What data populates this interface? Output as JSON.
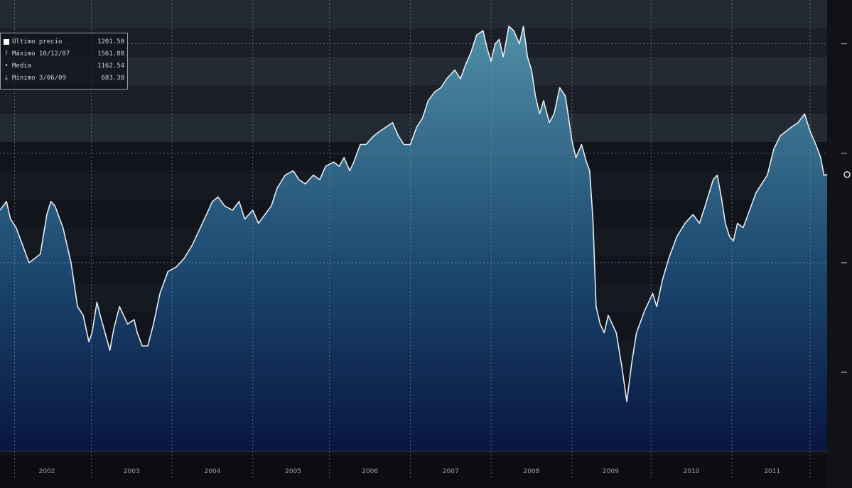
{
  "legend": {
    "rows": [
      {
        "marker": "square",
        "label": "Último precio",
        "value": "1201.50"
      },
      {
        "marker": "high",
        "label": "Máximo 10/12/07",
        "value": "1561.80"
      },
      {
        "marker": "mean",
        "label": "Media",
        "value": "1162.54"
      },
      {
        "marker": "low",
        "label": "Mínimo 3/06/09",
        "value": "683.38"
      }
    ]
  },
  "colors": {
    "background_band_dark": "#15181f",
    "background_band_light": "#242a33",
    "area_top": "#4f8fa5",
    "area_bottom": "#08163f",
    "line": "#e6ecf2",
    "grid": "#8d939b"
  },
  "chart_data": {
    "type": "area",
    "title": "",
    "xlabel": "",
    "ylabel": "",
    "x_tick_labels": [
      "2002",
      "2003",
      "2004",
      "2005",
      "2006",
      "2007",
      "2008",
      "2009",
      "2010",
      "2011"
    ],
    "ylim": [
      570,
      1600
    ],
    "grid": true,
    "legend_position": "top-left",
    "series": [
      {
        "values_by_year": [
          [
            2001.42,
            1120
          ],
          [
            2001.5,
            1140
          ],
          [
            2001.55,
            1100
          ],
          [
            2001.62,
            1080
          ],
          [
            2001.7,
            1040
          ],
          [
            2001.78,
            1000
          ],
          [
            2001.85,
            1010
          ],
          [
            2001.92,
            1020
          ],
          [
            2002.0,
            1110
          ],
          [
            2002.05,
            1140
          ],
          [
            2002.1,
            1130
          ],
          [
            2002.2,
            1080
          ],
          [
            2002.3,
            1000
          ],
          [
            2002.38,
            900
          ],
          [
            2002.45,
            880
          ],
          [
            2002.52,
            820
          ],
          [
            2002.56,
            840
          ],
          [
            2002.62,
            910
          ],
          [
            2002.66,
            880
          ],
          [
            2002.72,
            840
          ],
          [
            2002.78,
            800
          ],
          [
            2002.83,
            850
          ],
          [
            2002.9,
            900
          ],
          [
            2002.95,
            880
          ],
          [
            2003.0,
            860
          ],
          [
            2003.08,
            870
          ],
          [
            2003.12,
            840
          ],
          [
            2003.18,
            810
          ],
          [
            2003.25,
            810
          ],
          [
            2003.32,
            860
          ],
          [
            2003.4,
            930
          ],
          [
            2003.5,
            980
          ],
          [
            2003.6,
            990
          ],
          [
            2003.7,
            1010
          ],
          [
            2003.8,
            1040
          ],
          [
            2003.9,
            1080
          ],
          [
            2004.0,
            1120
          ],
          [
            2004.05,
            1140
          ],
          [
            2004.12,
            1150
          ],
          [
            2004.2,
            1130
          ],
          [
            2004.3,
            1120
          ],
          [
            2004.38,
            1140
          ],
          [
            2004.45,
            1100
          ],
          [
            2004.55,
            1120
          ],
          [
            2004.62,
            1090
          ],
          [
            2004.7,
            1110
          ],
          [
            2004.78,
            1130
          ],
          [
            2004.85,
            1170
          ],
          [
            2004.95,
            1200
          ],
          [
            2005.05,
            1210
          ],
          [
            2005.12,
            1190
          ],
          [
            2005.2,
            1180
          ],
          [
            2005.3,
            1200
          ],
          [
            2005.38,
            1190
          ],
          [
            2005.45,
            1220
          ],
          [
            2005.55,
            1230
          ],
          [
            2005.62,
            1220
          ],
          [
            2005.68,
            1240
          ],
          [
            2005.75,
            1210
          ],
          [
            2005.8,
            1230
          ],
          [
            2005.88,
            1270
          ],
          [
            2005.95,
            1270
          ],
          [
            2006.05,
            1290
          ],
          [
            2006.12,
            1300
          ],
          [
            2006.2,
            1310
          ],
          [
            2006.28,
            1320
          ],
          [
            2006.35,
            1290
          ],
          [
            2006.42,
            1270
          ],
          [
            2006.5,
            1270
          ],
          [
            2006.58,
            1310
          ],
          [
            2006.65,
            1330
          ],
          [
            2006.72,
            1370
          ],
          [
            2006.8,
            1390
          ],
          [
            2006.88,
            1400
          ],
          [
            2006.95,
            1420
          ],
          [
            2007.05,
            1440
          ],
          [
            2007.12,
            1420
          ],
          [
            2007.18,
            1450
          ],
          [
            2007.25,
            1480
          ],
          [
            2007.32,
            1520
          ],
          [
            2007.4,
            1530
          ],
          [
            2007.45,
            1490
          ],
          [
            2007.5,
            1460
          ],
          [
            2007.55,
            1500
          ],
          [
            2007.6,
            1510
          ],
          [
            2007.65,
            1470
          ],
          [
            2007.72,
            1540
          ],
          [
            2007.78,
            1530
          ],
          [
            2007.85,
            1500
          ],
          [
            2007.9,
            1540
          ],
          [
            2007.95,
            1470
          ],
          [
            2008.0,
            1440
          ],
          [
            2008.05,
            1380
          ],
          [
            2008.1,
            1340
          ],
          [
            2008.15,
            1370
          ],
          [
            2008.22,
            1320
          ],
          [
            2008.28,
            1340
          ],
          [
            2008.35,
            1400
          ],
          [
            2008.42,
            1380
          ],
          [
            2008.5,
            1280
          ],
          [
            2008.55,
            1240
          ],
          [
            2008.62,
            1270
          ],
          [
            2008.68,
            1230
          ],
          [
            2008.72,
            1210
          ],
          [
            2008.76,
            1100
          ],
          [
            2008.8,
            900
          ],
          [
            2008.85,
            860
          ],
          [
            2008.9,
            840
          ],
          [
            2008.95,
            880
          ],
          [
            2009.0,
            860
          ],
          [
            2009.05,
            840
          ],
          [
            2009.12,
            760
          ],
          [
            2009.18,
            683
          ],
          [
            2009.24,
            770
          ],
          [
            2009.3,
            840
          ],
          [
            2009.4,
            890
          ],
          [
            2009.45,
            910
          ],
          [
            2009.5,
            930
          ],
          [
            2009.55,
            900
          ],
          [
            2009.62,
            960
          ],
          [
            2009.7,
            1010
          ],
          [
            2009.8,
            1060
          ],
          [
            2009.9,
            1090
          ],
          [
            2010.0,
            1110
          ],
          [
            2010.08,
            1090
          ],
          [
            2010.15,
            1130
          ],
          [
            2010.25,
            1190
          ],
          [
            2010.3,
            1200
          ],
          [
            2010.35,
            1150
          ],
          [
            2010.4,
            1090
          ],
          [
            2010.45,
            1060
          ],
          [
            2010.5,
            1050
          ],
          [
            2010.55,
            1090
          ],
          [
            2010.62,
            1080
          ],
          [
            2010.7,
            1120
          ],
          [
            2010.78,
            1160
          ],
          [
            2010.85,
            1180
          ],
          [
            2010.92,
            1200
          ],
          [
            2011.0,
            1260
          ],
          [
            2011.08,
            1290
          ],
          [
            2011.15,
            1300
          ],
          [
            2011.22,
            1310
          ],
          [
            2011.3,
            1320
          ],
          [
            2011.38,
            1340
          ],
          [
            2011.45,
            1300
          ],
          [
            2011.52,
            1270
          ],
          [
            2011.58,
            1240
          ],
          [
            2011.62,
            1200
          ],
          [
            2011.66,
            1201.5
          ]
        ]
      }
    ]
  }
}
